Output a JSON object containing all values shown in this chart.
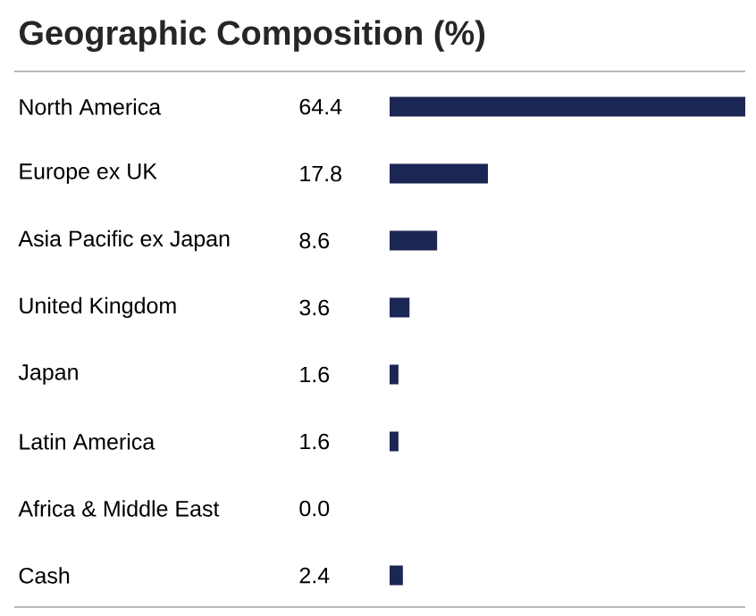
{
  "chart_data": {
    "type": "bar",
    "orientation": "horizontal",
    "title": "Geographic Composition (%)",
    "categories": [
      "North America",
      "Europe ex UK",
      "Asia Pacific ex Japan",
      "United Kingdom",
      "Japan",
      "Latin America",
      "Africa & Middle East",
      "Cash"
    ],
    "values": [
      64.4,
      17.8,
      8.6,
      3.6,
      1.6,
      1.6,
      0.0,
      2.4
    ],
    "value_labels": [
      "64.4",
      "17.8",
      "8.6",
      "3.6",
      "1.6",
      "1.6",
      "0.0",
      "2.4"
    ],
    "color": "#1c2654"
  }
}
